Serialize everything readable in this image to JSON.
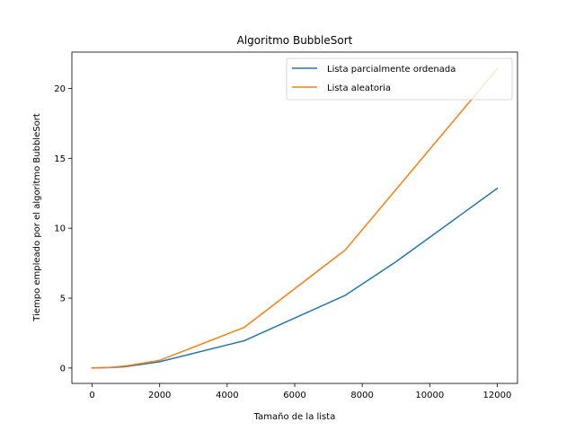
{
  "chart_data": {
    "type": "line",
    "title": "Algoritmo BubbleSort",
    "xlabel": "Tamaño de la lista",
    "ylabel": "Tiempo empleado por el algoritmo BubbleSort",
    "xlim": [
      -600,
      12600
    ],
    "ylim": [
      -1.1,
      22.6
    ],
    "xticks": [
      0,
      2000,
      4000,
      6000,
      8000,
      10000,
      12000
    ],
    "yticks": [
      0,
      5,
      10,
      15,
      20
    ],
    "grid": false,
    "legend_position": "upper-right",
    "series": [
      {
        "name": "Lista parcialmente ordenada",
        "color": "#1f77b4",
        "x": [
          0,
          500,
          1000,
          2000,
          4500,
          7500,
          9000,
          12000
        ],
        "y": [
          0,
          0.03,
          0.1,
          0.45,
          1.95,
          5.2,
          7.6,
          12.85
        ]
      },
      {
        "name": "Lista aleatoria",
        "color": "#ff7f0e",
        "x": [
          0,
          500,
          1000,
          2000,
          4500,
          7500,
          12000
        ],
        "y": [
          0,
          0.04,
          0.15,
          0.55,
          2.9,
          8.45,
          21.4
        ]
      }
    ]
  }
}
